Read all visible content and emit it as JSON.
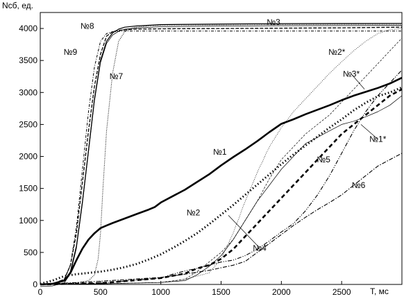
{
  "chart_data": {
    "type": "line",
    "title": "",
    "xlabel": "T, мс",
    "ylabel": "Nсб, ед.",
    "xlim": [
      0,
      3000
    ],
    "ylim": [
      0,
      4250
    ],
    "x_ticks": [
      0,
      500,
      1000,
      1500,
      2000,
      2500
    ],
    "y_ticks": [
      0,
      500,
      1000,
      1500,
      2000,
      2500,
      3000,
      3500,
      4000
    ],
    "grid": false,
    "legend": "none (curves labeled inline)",
    "series": [
      {
        "name": "№1",
        "style": "thick-solid",
        "label_at": [
          1490,
          2070
        ],
        "x": [
          0,
          100,
          200,
          250,
          300,
          350,
          400,
          450,
          500,
          550,
          600,
          700,
          800,
          900,
          950,
          1000,
          1100,
          1200,
          1300,
          1400,
          1500,
          1600,
          1700,
          1800,
          1900,
          2000,
          2100,
          2200,
          2300,
          2400,
          2500,
          2600,
          2700,
          2800,
          2900,
          3000
        ],
        "y": [
          0,
          10,
          60,
          180,
          380,
          560,
          700,
          800,
          880,
          920,
          960,
          1030,
          1100,
          1170,
          1210,
          1280,
          1380,
          1480,
          1600,
          1720,
          1860,
          1990,
          2110,
          2240,
          2380,
          2510,
          2580,
          2660,
          2730,
          2800,
          2880,
          2950,
          3010,
          3070,
          3140,
          3230
        ]
      },
      {
        "name": "№2",
        "style": "thick-dotted",
        "label_at": [
          1270,
          1120
        ],
        "x": [
          0,
          100,
          200,
          300,
          400,
          500,
          600,
          700,
          800,
          900,
          1000,
          1100,
          1200,
          1300,
          1400,
          1500,
          1600,
          1700,
          1800,
          1900,
          2000,
          2100,
          2200,
          2300,
          2400,
          2500,
          2600,
          2700,
          2800,
          2900,
          3000
        ],
        "y": [
          10,
          60,
          130,
          160,
          180,
          200,
          230,
          270,
          320,
          390,
          470,
          570,
          680,
          800,
          940,
          1090,
          1240,
          1400,
          1560,
          1720,
          1880,
          2030,
          2170,
          2310,
          2450,
          2580,
          2720,
          2840,
          2940,
          3000,
          3080
        ]
      },
      {
        "name": "№3",
        "style": "thin-solid-double",
        "label_at": [
          1935,
          4100
        ],
        "x": [
          0,
          100,
          200,
          250,
          300,
          350,
          400,
          450,
          500,
          550,
          600,
          650,
          700,
          800,
          1000,
          1500,
          2000,
          2500,
          3000
        ],
        "y": [
          0,
          10,
          60,
          200,
          600,
          1300,
          2100,
          2900,
          3500,
          3800,
          3930,
          3990,
          4020,
          4040,
          4060,
          4070,
          4075,
          4078,
          4080
        ]
      },
      {
        "name": "№2*",
        "style": "thin-dotted",
        "label_at": [
          2460,
          3630
        ],
        "x": [
          0,
          500,
          1000,
          1200,
          1400,
          1500,
          1600,
          1700,
          1800,
          1900,
          2000,
          2100,
          2200,
          2300,
          2400,
          2500,
          2600,
          2700,
          2800,
          2900,
          3000
        ],
        "y": [
          0,
          10,
          30,
          80,
          180,
          400,
          800,
          1300,
          1750,
          2150,
          2450,
          2700,
          2900,
          3100,
          3300,
          3480,
          3650,
          3800,
          3920,
          3980,
          4000
        ]
      },
      {
        "name": "№3*",
        "style": "thin-dashed",
        "label_at": [
          2580,
          3290
        ],
        "x": [
          0,
          500,
          1000,
          1200,
          1300,
          1400,
          1500,
          1600,
          1700,
          1800,
          1900,
          2000,
          2100,
          2200,
          2300,
          2400,
          2500,
          2600,
          2700,
          2800,
          2900,
          3000
        ],
        "y": [
          0,
          10,
          30,
          80,
          200,
          350,
          500,
          700,
          1000,
          1300,
          1650,
          1950,
          2150,
          2350,
          2500,
          2650,
          2850,
          3050,
          3250,
          3450,
          3650,
          3850
        ]
      },
      {
        "name": "№1*",
        "style": "thin-solid",
        "label_at": [
          2800,
          2270
        ],
        "x": [
          0,
          500,
          1000,
          1200,
          1300,
          1400,
          1500,
          1600,
          1700,
          1800,
          1900,
          2000,
          2100,
          2200,
          2300,
          2400,
          2500,
          2600,
          2700,
          2800,
          2900,
          3000
        ],
        "y": [
          0,
          10,
          30,
          60,
          150,
          280,
          450,
          700,
          1000,
          1300,
          1550,
          1800,
          2000,
          2200,
          2300,
          2400,
          2500,
          2550,
          2620,
          2700,
          2800,
          2950
        ]
      },
      {
        "name": "№4",
        "style": "dash-dot-dot",
        "label_at": [
          1820,
          570
        ],
        "x": [
          0,
          500,
          1000,
          1100,
          1200,
          1300,
          1400,
          1500,
          1600,
          1700,
          1800,
          1900,
          2000,
          2100,
          2200,
          2300,
          2400,
          2500,
          2600,
          2700,
          2800,
          2900,
          3000
        ],
        "y": [
          0,
          20,
          100,
          160,
          210,
          250,
          300,
          350,
          380,
          450,
          550,
          680,
          820,
          950,
          1150,
          1400,
          1700,
          2050,
          2400,
          2700,
          2950,
          3150,
          3350
        ]
      },
      {
        "name": "№5",
        "style": "thick-dashed",
        "label_at": [
          2350,
          1950
        ],
        "x": [
          0,
          500,
          1000,
          1200,
          1300,
          1400,
          1500,
          1600,
          1700,
          1800,
          1900,
          2000,
          2100,
          2200,
          2300,
          2400,
          2500,
          2600,
          2700,
          2800,
          2900,
          3000
        ],
        "y": [
          0,
          20,
          100,
          170,
          250,
          300,
          400,
          550,
          750,
          950,
          1150,
          1350,
          1550,
          1750,
          1950,
          2150,
          2350,
          2500,
          2650,
          2800,
          2950,
          3050
        ]
      },
      {
        "name": "№6",
        "style": "dash-dot",
        "label_at": [
          2640,
          1550
        ],
        "x": [
          0,
          500,
          1000,
          1200,
          1400,
          1500,
          1600,
          1700,
          1800,
          1900,
          2000,
          2100,
          2200,
          2300,
          2400,
          2500,
          2600,
          2700,
          2800,
          2900,
          3000
        ],
        "y": [
          0,
          50,
          110,
          160,
          220,
          260,
          300,
          360,
          500,
          640,
          780,
          920,
          1050,
          1170,
          1280,
          1400,
          1550,
          1700,
          1850,
          1950,
          2050
        ]
      },
      {
        "name": "№7",
        "style": "thin-dotted-steep",
        "label_at": [
          630,
          3250
        ],
        "x": [
          0,
          300,
          400,
          450,
          480,
          500,
          520,
          550,
          600,
          650,
          700,
          750,
          800,
          900,
          1000,
          1500,
          2000,
          2500,
          3000
        ],
        "y": [
          0,
          20,
          60,
          150,
          400,
          800,
          1500,
          2400,
          3300,
          3800,
          3950,
          4000,
          4020,
          4040,
          4050,
          4055,
          4060,
          4065,
          4065
        ]
      },
      {
        "name": "№8",
        "style": "thin-dashed-steep",
        "label_at": [
          390,
          4040
        ],
        "x": [
          0,
          100,
          200,
          250,
          300,
          350,
          400,
          450,
          500,
          550,
          600,
          650,
          700,
          800,
          1000,
          1500,
          2000,
          2500,
          3000
        ],
        "y": [
          0,
          10,
          80,
          300,
          800,
          1600,
          2400,
          3100,
          3600,
          3880,
          3950,
          3970,
          3980,
          3990,
          3995,
          4000,
          4005,
          4010,
          4020
        ]
      },
      {
        "name": "№9",
        "style": "thin-dashdot-steep",
        "label_at": [
          250,
          3630
        ],
        "x": [
          0,
          100,
          200,
          250,
          300,
          350,
          400,
          450,
          500,
          550,
          600,
          700,
          800,
          1000,
          1500,
          2000,
          2500,
          3000
        ],
        "y": [
          0,
          10,
          80,
          300,
          900,
          1800,
          2700,
          3400,
          3800,
          3920,
          3950,
          3960,
          3960,
          3960,
          3960,
          3960,
          3960,
          3960
        ]
      }
    ],
    "annotations": [
      {
        "text": "№4",
        "from": [
          1820,
          570
        ],
        "to": [
          1560,
          1080
        ]
      },
      {
        "text": "№1*",
        "from": [
          2800,
          2270
        ],
        "to": [
          2660,
          2500
        ]
      },
      {
        "text": "№3*",
        "from": [
          2580,
          3290
        ],
        "to": [
          2690,
          3050
        ]
      }
    ]
  }
}
